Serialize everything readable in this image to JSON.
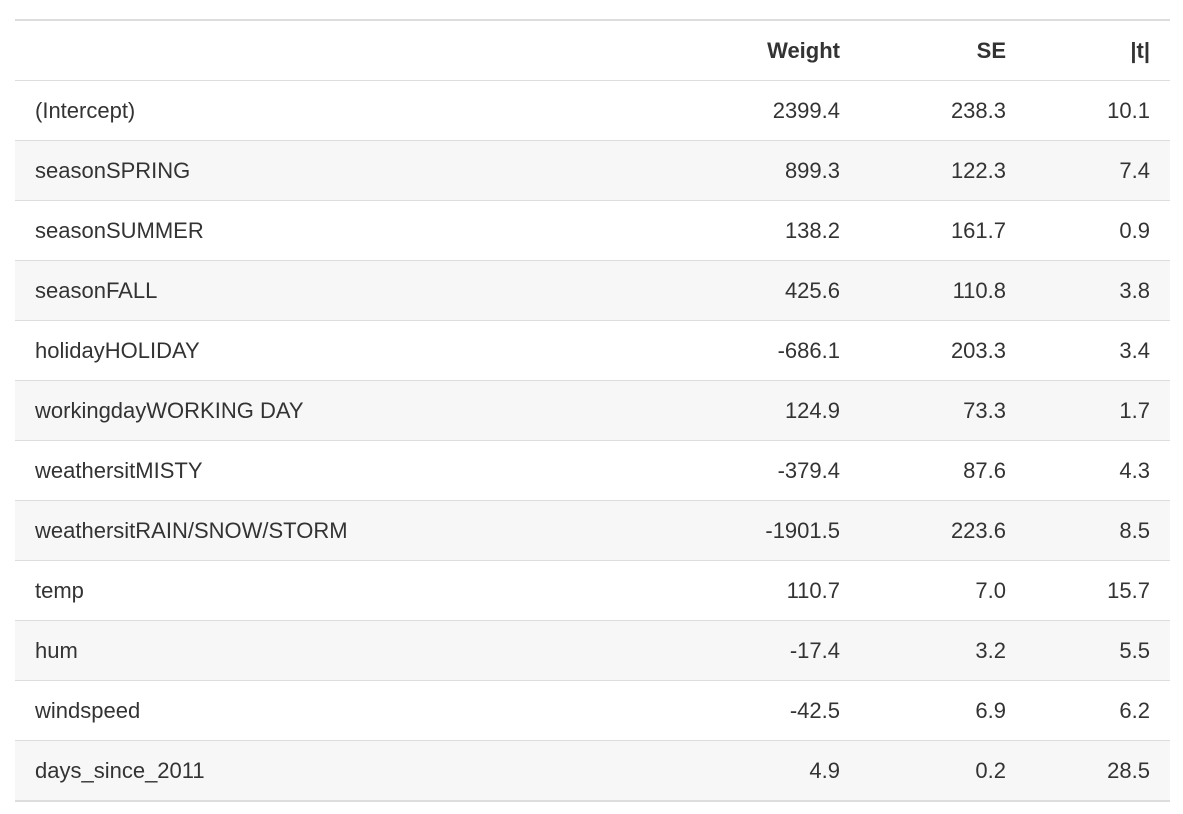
{
  "table": {
    "headers": [
      "",
      "Weight",
      "SE",
      "|t|"
    ],
    "rows": [
      {
        "name": "(Intercept)",
        "weight": "2399.4",
        "se": "238.3",
        "t": "10.1"
      },
      {
        "name": "seasonSPRING",
        "weight": "899.3",
        "se": "122.3",
        "t": "7.4"
      },
      {
        "name": "seasonSUMMER",
        "weight": "138.2",
        "se": "161.7",
        "t": "0.9"
      },
      {
        "name": "seasonFALL",
        "weight": "425.6",
        "se": "110.8",
        "t": "3.8"
      },
      {
        "name": "holidayHOLIDAY",
        "weight": "-686.1",
        "se": "203.3",
        "t": "3.4"
      },
      {
        "name": "workingdayWORKING DAY",
        "weight": "124.9",
        "se": "73.3",
        "t": "1.7"
      },
      {
        "name": "weathersitMISTY",
        "weight": "-379.4",
        "se": "87.6",
        "t": "4.3"
      },
      {
        "name": "weathersitRAIN/SNOW/STORM",
        "weight": "-1901.5",
        "se": "223.6",
        "t": "8.5"
      },
      {
        "name": "temp",
        "weight": "110.7",
        "se": "7.0",
        "t": "15.7"
      },
      {
        "name": "hum",
        "weight": "-17.4",
        "se": "3.2",
        "t": "5.5"
      },
      {
        "name": "windspeed",
        "weight": "-42.5",
        "se": "6.9",
        "t": "6.2"
      },
      {
        "name": "days_since_2011",
        "weight": "4.9",
        "se": "0.2",
        "t": "28.5"
      }
    ]
  }
}
